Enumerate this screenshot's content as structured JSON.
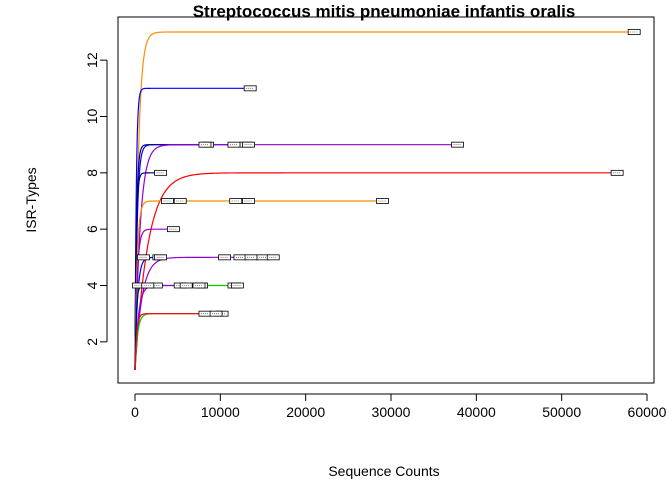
{
  "chart_data": {
    "type": "line",
    "title": "Streptococcus mitis pneumoniae infantis oralis",
    "xlabel": "Sequence Counts",
    "ylabel": "ISR-Types",
    "xlim": [
      0,
      60000
    ],
    "ylim": [
      1,
      13
    ],
    "xticks": [
      0,
      10000,
      20000,
      30000,
      40000,
      50000,
      60000
    ],
    "yticks": [
      2,
      4,
      6,
      8,
      10,
      12
    ],
    "grid": false,
    "series": [
      {
        "color": "#ff8c00",
        "level": 13,
        "max": 58500,
        "k": 400,
        "markers": [
          58500
        ]
      },
      {
        "color": "#0000ff",
        "level": 11,
        "max": 13500,
        "k": 150,
        "markers": [
          13500
        ]
      },
      {
        "color": "#0000ff",
        "level": 9,
        "max": 13000,
        "k": 250,
        "markers": [
          13000
        ]
      },
      {
        "color": "#000080",
        "level": 9,
        "max": 8500,
        "k": 180,
        "markers": [
          8500
        ]
      },
      {
        "color": "#9400d3",
        "level": 9,
        "max": 37800,
        "k": 600,
        "markers": [
          8200,
          11600,
          13300,
          37800
        ]
      },
      {
        "color": "#ff0000",
        "level": 8,
        "max": 56500,
        "k": 1500,
        "markers": [
          56500
        ]
      },
      {
        "color": "#000080",
        "level": 8,
        "max": 3000,
        "k": 150,
        "markers": [
          3000
        ]
      },
      {
        "color": "#ff8c00",
        "level": 7,
        "max": 29000,
        "k": 250,
        "markers": [
          3800,
          5300,
          11800,
          13300,
          29000
        ]
      },
      {
        "color": "#9400d3",
        "level": 6,
        "max": 4500,
        "k": 250,
        "markers": [
          4500
        ]
      },
      {
        "color": "#9400d3",
        "level": 5,
        "max": 16200,
        "k": 800,
        "markers": [
          1000,
          2800,
          10500,
          12300,
          13600,
          15000,
          16200
        ]
      },
      {
        "color": "#0000ff",
        "level": 5,
        "max": 3000,
        "k": 300,
        "markers": [
          3000
        ]
      },
      {
        "color": "#00cc00",
        "level": 4,
        "max": 12000,
        "k": 120,
        "markers": [
          400,
          2500,
          5300,
          7800,
          11600,
          12000
        ]
      },
      {
        "color": "#9400d3",
        "level": 4,
        "max": 7500,
        "k": 400,
        "markers": [
          6000,
          7500
        ]
      },
      {
        "color": "#000080",
        "level": 4,
        "max": 1500,
        "k": 150,
        "markers": [
          1500
        ]
      },
      {
        "color": "#00cc00",
        "level": 3,
        "max": 10200,
        "k": 300,
        "markers": [
          8200,
          10200
        ]
      },
      {
        "color": "#ff0000",
        "level": 3,
        "max": 9500,
        "k": 200,
        "markers": [
          9500
        ]
      }
    ]
  }
}
